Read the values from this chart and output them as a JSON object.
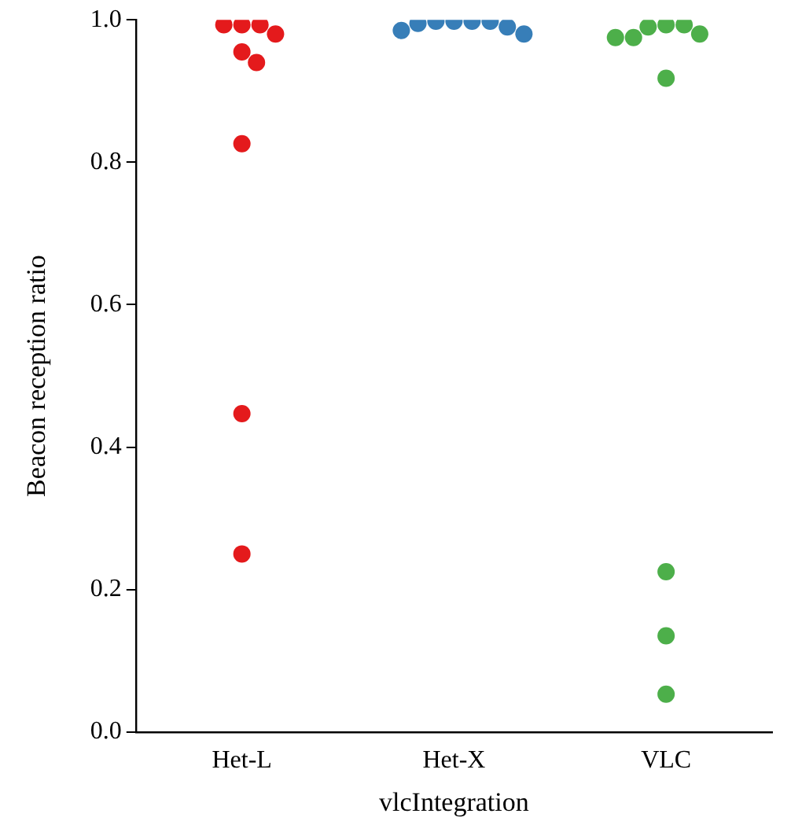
{
  "chart_data": {
    "type": "scatter",
    "xlabel": "vlcIntegration",
    "ylabel": "Beacon reception ratio",
    "categories": [
      "Het-L",
      "Het-X",
      "VLC"
    ],
    "series": [
      {
        "color": "#e41a1c",
        "x": [
          "Het-L",
          "Het-L",
          "Het-L",
          "Het-L",
          "Het-L",
          "Het-L",
          "Het-L",
          "Het-L",
          "Het-L"
        ],
        "values": [
          0.993,
          0.993,
          0.993,
          0.98,
          0.955,
          0.94,
          0.826,
          0.447,
          0.25
        ]
      },
      {
        "color": "#377eb8",
        "x": [
          "Het-X",
          "Het-X",
          "Het-X",
          "Het-X",
          "Het-X",
          "Het-X",
          "Het-X",
          "Het-X"
        ],
        "values": [
          0.998,
          0.998,
          0.998,
          0.998,
          0.995,
          0.99,
          0.985,
          0.98
        ]
      },
      {
        "color": "#4daf4a",
        "x": [
          "VLC",
          "VLC",
          "VLC",
          "VLC",
          "VLC",
          "VLC",
          "VLC",
          "VLC",
          "VLC",
          "VLC"
        ],
        "values": [
          0.993,
          0.993,
          0.99,
          0.98,
          0.975,
          0.975,
          0.918,
          0.225,
          0.135,
          0.053
        ]
      }
    ],
    "ylim": [
      0,
      1
    ],
    "yticks": [
      {
        "value": 0,
        "label": "0.0"
      },
      {
        "value": 0.2,
        "label": "0.2"
      },
      {
        "value": 0.4,
        "label": "0.4"
      },
      {
        "value": 0.6,
        "label": "0.6"
      },
      {
        "value": 0.8,
        "label": "0.8"
      },
      {
        "value": 1,
        "label": "1.0"
      }
    ],
    "grid": false,
    "legend": false,
    "marker": "circle"
  }
}
